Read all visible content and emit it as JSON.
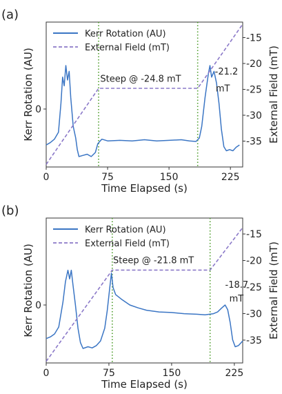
{
  "chart_data": [
    {
      "type": "line",
      "panel_label": "(a)",
      "xlabel": "Time Elapsed (s)",
      "ylabel": "Kerr Rotation (AU)",
      "y2label": "External Field (mT)",
      "xlim": [
        0,
        240
      ],
      "x_ticks": [
        0,
        75,
        150,
        225
      ],
      "y_ticks": [
        0
      ],
      "y2lim": [
        -40,
        -12
      ],
      "y2_ticks": [
        -15,
        -20,
        -25,
        -30,
        -35
      ],
      "legend": {
        "position": "top-left",
        "entries": [
          "Kerr Rotation (AU)",
          "External Field (mT)"
        ]
      },
      "series": [
        {
          "name": "Kerr Rotation (AU)",
          "axis": "left",
          "color": "#3a75c4",
          "points": [
            [
              0,
              -0.62
            ],
            [
              5,
              -0.58
            ],
            [
              10,
              -0.52
            ],
            [
              15,
              -0.4
            ],
            [
              18,
              0.1
            ],
            [
              20,
              0.55
            ],
            [
              22,
              0.4
            ],
            [
              24,
              0.75
            ],
            [
              26,
              0.5
            ],
            [
              28,
              0.65
            ],
            [
              30,
              0.2
            ],
            [
              33,
              -0.3
            ],
            [
              36,
              -0.5
            ],
            [
              38,
              -0.7
            ],
            [
              40,
              -0.82
            ],
            [
              45,
              -0.8
            ],
            [
              50,
              -0.78
            ],
            [
              55,
              -0.82
            ],
            [
              60,
              -0.75
            ],
            [
              63,
              -0.6
            ],
            [
              66,
              -0.55
            ],
            [
              68,
              -0.52
            ],
            [
              75,
              -0.55
            ],
            [
              90,
              -0.54
            ],
            [
              105,
              -0.55
            ],
            [
              120,
              -0.53
            ],
            [
              135,
              -0.55
            ],
            [
              150,
              -0.54
            ],
            [
              165,
              -0.53
            ],
            [
              175,
              -0.55
            ],
            [
              183,
              -0.56
            ],
            [
              187,
              -0.5
            ],
            [
              190,
              -0.3
            ],
            [
              194,
              0.2
            ],
            [
              198,
              0.6
            ],
            [
              200,
              0.75
            ],
            [
              202,
              0.55
            ],
            [
              205,
              0.65
            ],
            [
              208,
              0.45
            ],
            [
              211,
              0.1
            ],
            [
              214,
              -0.35
            ],
            [
              217,
              -0.65
            ],
            [
              220,
              -0.72
            ],
            [
              224,
              -0.7
            ],
            [
              228,
              -0.72
            ],
            [
              232,
              -0.66
            ],
            [
              236,
              -0.62
            ]
          ]
        },
        {
          "name": "External Field (mT)",
          "axis": "right",
          "color": "#8a78c8",
          "points": [
            [
              0,
              -39.5
            ],
            [
              64,
              -24.8
            ],
            [
              185,
              -24.8
            ],
            [
              240,
              -12.4
            ]
          ]
        }
      ],
      "annotations": [
        {
          "text": "Steep @ -24.8 mT",
          "x": 66,
          "y2": -23.5
        },
        {
          "text": "-21.2",
          "x": 206,
          "y2": -22.1
        },
        {
          "text": "mT",
          "x": 207,
          "y2": -25.4
        }
      ],
      "vlines": [
        {
          "x": 64,
          "style": "dotted",
          "color": "#4d9c2a"
        },
        {
          "x": 185,
          "style": "dotted",
          "color": "#4d9c2a"
        }
      ]
    },
    {
      "type": "line",
      "panel_label": "(b)",
      "xlabel": "Time Elapsed (s)",
      "ylabel": "Kerr Rotation (AU)",
      "y2label": "External Field (mT)",
      "xlim": [
        0,
        235
      ],
      "x_ticks": [
        0,
        75,
        150,
        225
      ],
      "y_ticks": [
        0
      ],
      "y2lim": [
        -39.3,
        -12
      ],
      "y2_ticks": [
        -15,
        -20,
        -25,
        -30,
        -35
      ],
      "legend": {
        "position": "top-left",
        "entries": [
          "Kerr Rotation (AU)",
          "External Field (mT)"
        ]
      },
      "series": [
        {
          "name": "Kerr Rotation (AU)",
          "axis": "left",
          "color": "#3a75c4",
          "points": [
            [
              0,
              -0.58
            ],
            [
              5,
              -0.55
            ],
            [
              10,
              -0.5
            ],
            [
              15,
              -0.38
            ],
            [
              20,
              0.05
            ],
            [
              23,
              0.4
            ],
            [
              26,
              0.6
            ],
            [
              28,
              0.45
            ],
            [
              30,
              0.6
            ],
            [
              32,
              0.35
            ],
            [
              35,
              0.0
            ],
            [
              38,
              -0.4
            ],
            [
              41,
              -0.65
            ],
            [
              44,
              -0.75
            ],
            [
              50,
              -0.72
            ],
            [
              55,
              -0.74
            ],
            [
              60,
              -0.7
            ],
            [
              65,
              -0.62
            ],
            [
              70,
              -0.4
            ],
            [
              73,
              -0.1
            ],
            [
              76,
              0.3
            ],
            [
              78,
              0.55
            ],
            [
              80,
              0.3
            ],
            [
              83,
              0.18
            ],
            [
              90,
              0.1
            ],
            [
              100,
              0.0
            ],
            [
              110,
              -0.05
            ],
            [
              120,
              -0.09
            ],
            [
              135,
              -0.12
            ],
            [
              150,
              -0.13
            ],
            [
              165,
              -0.15
            ],
            [
              180,
              -0.16
            ],
            [
              190,
              -0.17
            ],
            [
              200,
              -0.15
            ],
            [
              205,
              -0.12
            ],
            [
              210,
              -0.05
            ],
            [
              214,
              0.0
            ],
            [
              217,
              -0.08
            ],
            [
              220,
              -0.3
            ],
            [
              223,
              -0.6
            ],
            [
              226,
              -0.72
            ],
            [
              230,
              -0.7
            ],
            [
              235,
              -0.62
            ]
          ]
        },
        {
          "name": "External Field (mT)",
          "axis": "right",
          "color": "#8a78c8",
          "points": [
            [
              0,
              -39.0
            ],
            [
              79,
              -21.8
            ],
            [
              196,
              -21.8
            ],
            [
              235,
              -13.8
            ]
          ]
        }
      ],
      "annotations": [
        {
          "text": "Steep @ -21.8 mT",
          "x": 80,
          "y2": -20.5
        },
        {
          "text": "-18.7",
          "x": 214,
          "y2": -25.1
        },
        {
          "text": "mT",
          "x": 219,
          "y2": -27.7
        }
      ],
      "vlines": [
        {
          "x": 79,
          "style": "dotted",
          "color": "#4d9c2a"
        },
        {
          "x": 196,
          "style": "dotted",
          "color": "#4d9c2a"
        }
      ]
    }
  ]
}
